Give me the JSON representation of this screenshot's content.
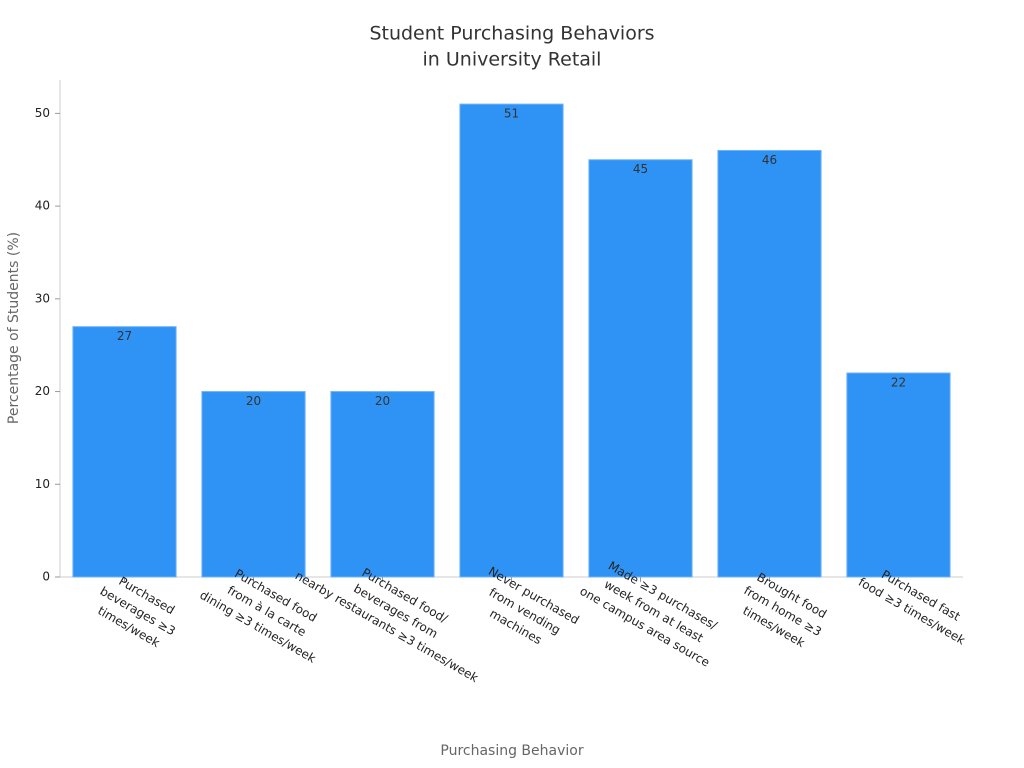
{
  "chart_data": {
    "type": "bar",
    "title": [
      "Student Purchasing Behaviors",
      "in University Retail"
    ],
    "xlabel": "Purchasing Behavior",
    "ylabel": "Percentage of Students (%)",
    "categories": [
      [
        "Purchased",
        "beverages ≥3",
        "times/week"
      ],
      [
        "Purchased food",
        "from à la carte",
        "dining ≥3 times/week"
      ],
      [
        "Purchased food/",
        "beverages from",
        "nearby restaurants ≥3 times/week"
      ],
      [
        "Never purchased",
        "from vending",
        "machines"
      ],
      [
        "Made ≥3 purchases/",
        "week from at least",
        "one campus area source"
      ],
      [
        "Brought food",
        "from home ≥3",
        "times/week"
      ],
      [
        "Purchased fast",
        "food ≥3 times/week"
      ]
    ],
    "values": [
      27,
      20,
      20,
      51,
      45,
      46,
      22
    ],
    "color": "#2f93f6",
    "ylim": [
      0,
      53.6
    ],
    "yticks": [
      0,
      10,
      20,
      30,
      40,
      50
    ],
    "grid": false
  }
}
